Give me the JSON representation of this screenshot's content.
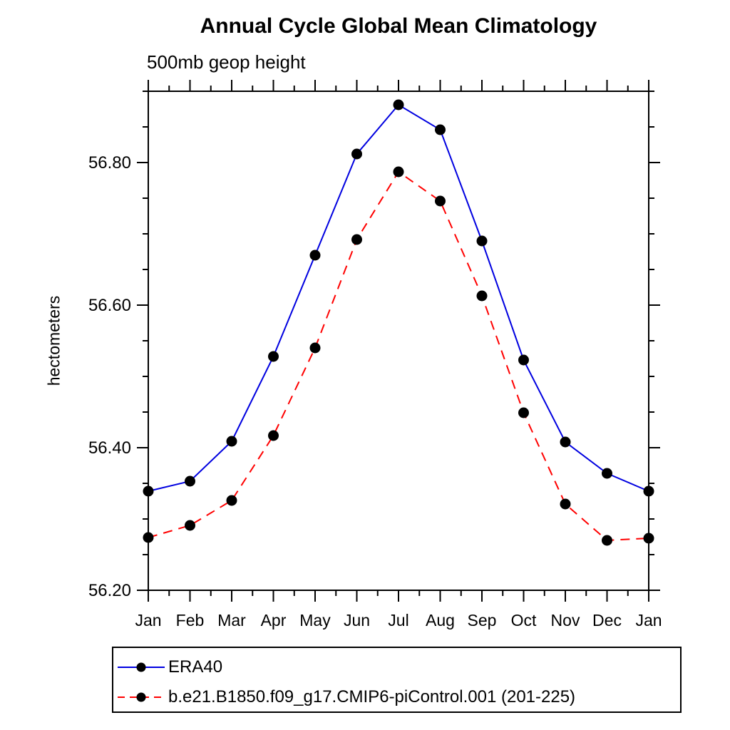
{
  "title": "Annual Cycle Global Mean Climatology",
  "subtitle": "500mb geop height",
  "chart_data": {
    "type": "line",
    "title": "Annual Cycle Global Mean Climatology",
    "subtitle": "500mb geop height",
    "ylabel": "hectometers",
    "xlabel": "",
    "categories": [
      "Jan",
      "Feb",
      "Mar",
      "Apr",
      "May",
      "Jun",
      "Jul",
      "Aug",
      "Sep",
      "Oct",
      "Nov",
      "Dec",
      "Jan"
    ],
    "ylim": [
      56.2,
      56.9
    ],
    "ytick_major_interval": 0.2,
    "ytick_minor_interval": 0.05,
    "ytick_labels": [
      "56.20",
      "56.40",
      "56.60",
      "56.80"
    ],
    "grid": false,
    "legend_position": "bottom",
    "frame_color": "#000000",
    "marker_shape": "circle",
    "series": [
      {
        "name": "ERA40",
        "color": "#0000e0",
        "line_style": "solid",
        "marker_color": "#000000",
        "values": [
          56.339,
          56.353,
          56.409,
          56.528,
          56.67,
          56.812,
          56.881,
          56.846,
          56.69,
          56.523,
          56.408,
          56.364,
          56.339
        ]
      },
      {
        "name": "b.e21.B1850.f09_g17.CMIP6-piControl.001 (201-225)",
        "color": "#ff0000",
        "line_style": "dashed",
        "marker_color": "#000000",
        "values": [
          56.274,
          56.291,
          56.326,
          56.417,
          56.54,
          56.692,
          56.787,
          56.746,
          56.613,
          56.449,
          56.321,
          56.27,
          56.273
        ]
      }
    ]
  }
}
